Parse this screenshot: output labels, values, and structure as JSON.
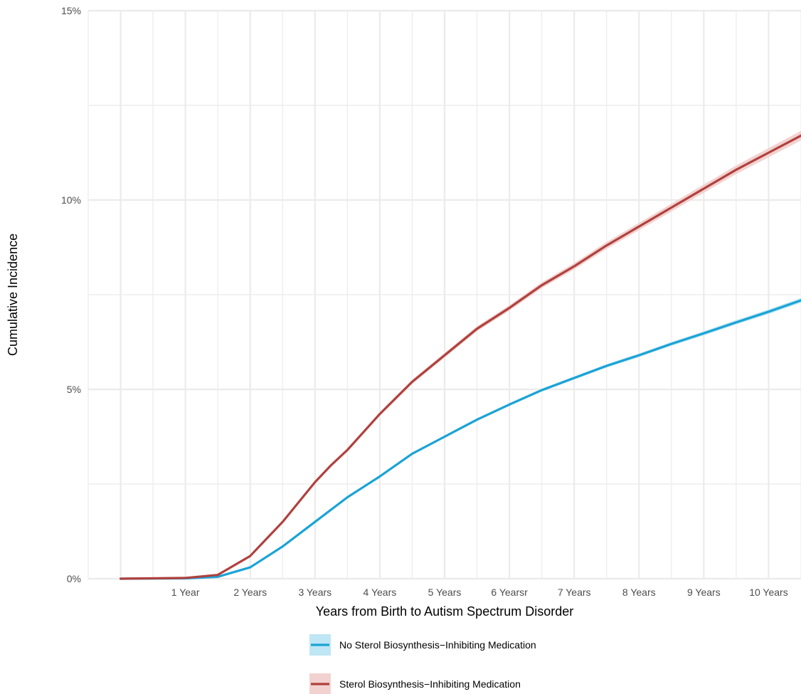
{
  "chart_data": {
    "type": "line",
    "xlabel": "Years from Birth to Autism Spectrum Disorder",
    "ylabel": "Cumulative Incidence",
    "xlim": [
      -0.5,
      10.5
    ],
    "ylim": [
      0,
      15
    ],
    "x_ticks": [
      {
        "value": 1,
        "label": "1 Year"
      },
      {
        "value": 2,
        "label": "2 Years"
      },
      {
        "value": 3,
        "label": "3 Years"
      },
      {
        "value": 4,
        "label": "4 Years"
      },
      {
        "value": 5,
        "label": "5 Years"
      },
      {
        "value": 6,
        "label": "6 Yearsr"
      },
      {
        "value": 7,
        "label": "7 Years"
      },
      {
        "value": 8,
        "label": "8 Years"
      },
      {
        "value": 9,
        "label": "9 Years"
      },
      {
        "value": 10,
        "label": "10 Years"
      }
    ],
    "y_ticks": [
      {
        "value": 0,
        "label": "0%"
      },
      {
        "value": 5,
        "label": "5%"
      },
      {
        "value": 10,
        "label": "10%"
      },
      {
        "value": 15,
        "label": "15%"
      }
    ],
    "grid": true,
    "legend_position": "bottom",
    "series": [
      {
        "name": "No Sterol Biosynthesis−Inhibiting Medication",
        "color": "#1ba3d6",
        "band_color": "#bfe6f4",
        "ci_halfwidth": 0.06,
        "x": [
          0,
          1,
          1.5,
          2,
          2.5,
          3,
          3.5,
          4,
          4.5,
          5,
          5.5,
          6,
          6.5,
          7,
          7.5,
          8,
          8.5,
          9,
          9.5,
          10,
          10.5
        ],
        "y": [
          0,
          0.01,
          0.05,
          0.3,
          0.85,
          1.5,
          2.15,
          2.7,
          3.3,
          3.75,
          4.2,
          4.6,
          4.98,
          5.3,
          5.62,
          5.9,
          6.2,
          6.48,
          6.77,
          7.05,
          7.35
        ]
      },
      {
        "name": "Sterol Biosynthesis−Inhibiting Medication",
        "color": "#b0413e",
        "band_color": "#f2d2d0",
        "ci_halfwidth": 0.12,
        "x": [
          0,
          1,
          1.5,
          2,
          2.5,
          3,
          3.25,
          3.5,
          4,
          4.5,
          5,
          5.5,
          6,
          6.5,
          7,
          7.5,
          8,
          8.5,
          9,
          9.5,
          10,
          10.5
        ],
        "y": [
          0,
          0.02,
          0.1,
          0.6,
          1.5,
          2.55,
          3.0,
          3.4,
          4.35,
          5.2,
          5.9,
          6.6,
          7.15,
          7.75,
          8.25,
          8.8,
          9.3,
          9.8,
          10.3,
          10.8,
          11.25,
          11.7
        ]
      }
    ]
  }
}
